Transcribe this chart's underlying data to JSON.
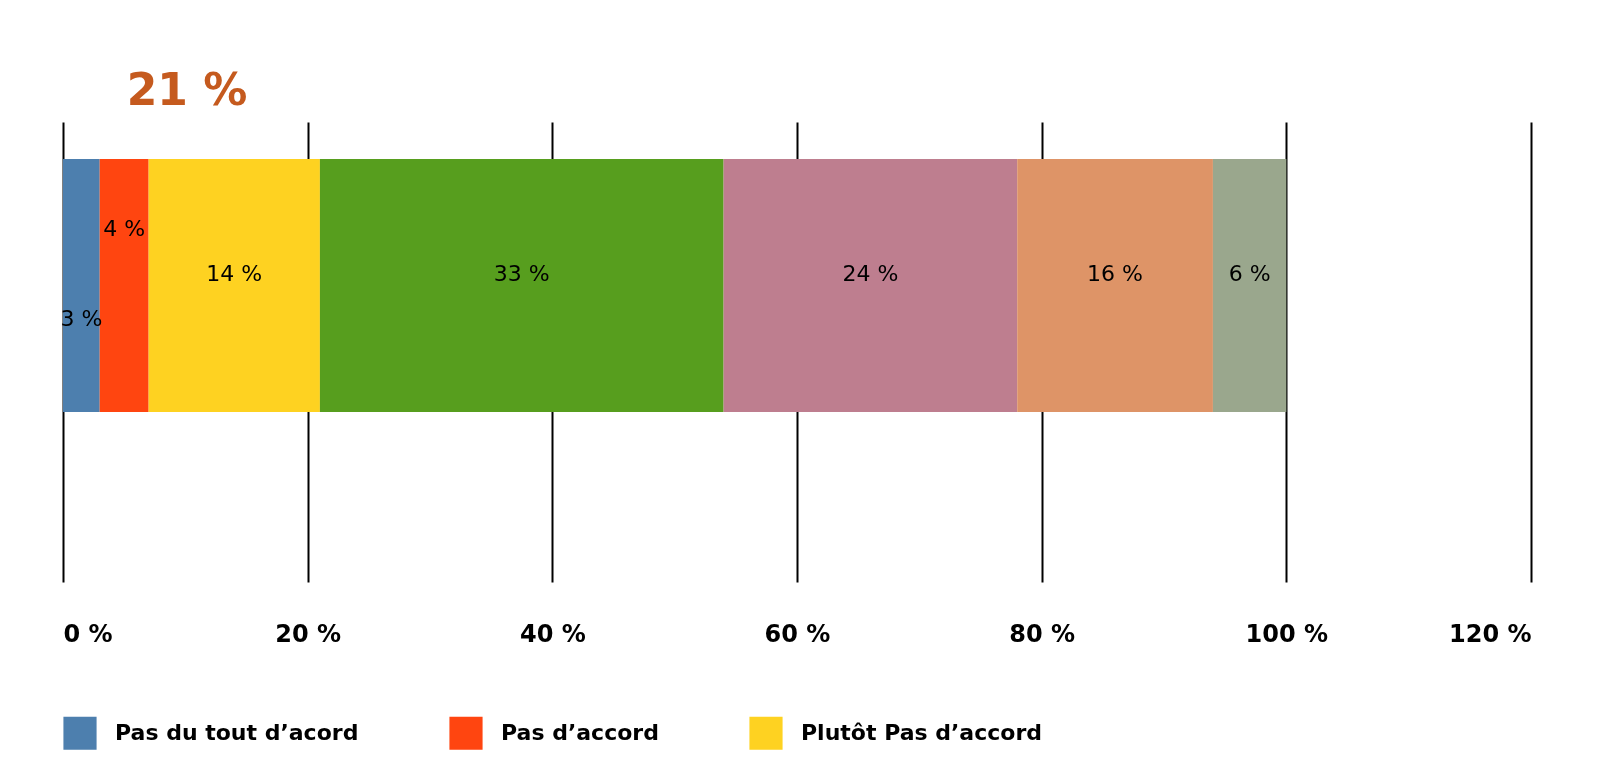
{
  "chart_data": {
    "type": "bar",
    "orientation": "horizontal",
    "stacked": true,
    "categories": [
      null
    ],
    "series": [
      {
        "name": "Pas du tout d’acord",
        "color": "#4d7fae",
        "values": [
          3
        ],
        "value_labels": [
          "3 %"
        ]
      },
      {
        "name": "Pas d’accord",
        "color": "#ff4510",
        "values": [
          4
        ],
        "value_labels": [
          "4 %"
        ]
      },
      {
        "name": "Plutôt Pas d’accord",
        "color": "#fed221",
        "values": [
          14
        ],
        "value_labels": [
          "14 %"
        ]
      },
      {
        "color": "#579e1e",
        "values": [
          33
        ],
        "value_labels": [
          "33 %"
        ]
      },
      {
        "color": "#be7e8f",
        "values": [
          24
        ],
        "value_labels": [
          "24 %"
        ]
      },
      {
        "color": "#de9467",
        "values": [
          16
        ],
        "value_labels": [
          "16 %"
        ]
      },
      {
        "color": "#9aa78d",
        "values": [
          6
        ],
        "value_labels": [
          "6 %"
        ]
      }
    ],
    "xlim": [
      0,
      120
    ],
    "xticks": [
      {
        "value": 0,
        "label": "0 %"
      },
      {
        "value": 20,
        "label": "20 %"
      },
      {
        "value": 40,
        "label": "40 %"
      },
      {
        "value": 60,
        "label": "60 %"
      },
      {
        "value": 80,
        "label": "80 %"
      },
      {
        "value": 100,
        "label": "100 %"
      },
      {
        "value": 120,
        "label": "120 %"
      }
    ],
    "grid": "x",
    "legend": "bottom",
    "annotations": [
      "21 %"
    ]
  }
}
